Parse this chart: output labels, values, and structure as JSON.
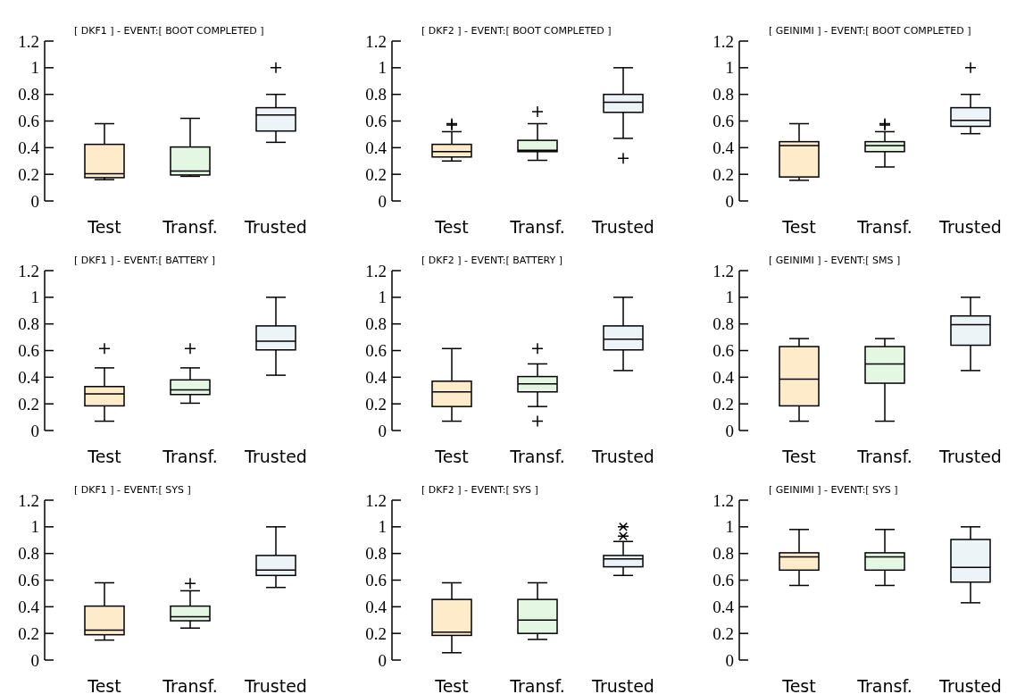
{
  "chart_data": [
    {
      "type": "box",
      "title": "[ DKF1 ] - EVENT:[ BOOT COMPLETED ]",
      "categories": [
        "Test",
        "Transf.",
        "Trusted"
      ],
      "colors": [
        "#fdebc9",
        "#e3f7e3",
        "#edf4f8"
      ],
      "ylim": [
        0,
        1.2
      ],
      "yticks": [
        0,
        0.2,
        0.4,
        0.6,
        0.8,
        1,
        1.2
      ],
      "marker": "cross",
      "boxes": [
        {
          "low": 0.16,
          "q1": 0.175,
          "median": 0.205,
          "q3": 0.425,
          "high": 0.58
        },
        {
          "low": 0.185,
          "q1": 0.195,
          "median": 0.225,
          "q3": 0.405,
          "high": 0.62
        },
        {
          "low": 0.44,
          "q1": 0.525,
          "median": 0.645,
          "q3": 0.7,
          "high": 0.8,
          "outliers": [
            1
          ]
        }
      ]
    },
    {
      "type": "box",
      "title": "[ DKF2 ] - EVENT:[ BOOT COMPLETED ]",
      "categories": [
        "Test",
        "Transf.",
        "Trusted"
      ],
      "colors": [
        "#fdebc9",
        "#e3f7e3",
        "#edf4f8"
      ],
      "ylim": [
        0,
        1.2
      ],
      "yticks": [
        0,
        0.2,
        0.4,
        0.6,
        0.8,
        1,
        1.2
      ],
      "marker": "cross",
      "boxes": [
        {
          "low": 0.3,
          "q1": 0.33,
          "median": 0.37,
          "q3": 0.425,
          "high": 0.52,
          "outliers": [
            0.57,
            0.58
          ]
        },
        {
          "low": 0.305,
          "q1": 0.37,
          "median": 0.38,
          "q3": 0.455,
          "high": 0.58,
          "outliers": [
            0.67
          ]
        },
        {
          "low": 0.47,
          "q1": 0.665,
          "median": 0.74,
          "q3": 0.8,
          "high": 1,
          "outliers": [
            0.32
          ]
        }
      ]
    },
    {
      "type": "box",
      "title": "[ GEINIMI ] - EVENT:[ BOOT COMPLETED ]",
      "categories": [
        "Test",
        "Transf.",
        "Trusted"
      ],
      "colors": [
        "#fdebc9",
        "#e3f7e3",
        "#edf4f8"
      ],
      "ylim": [
        0,
        1.2
      ],
      "yticks": [
        0,
        0.2,
        0.4,
        0.6,
        0.8,
        1,
        1.2
      ],
      "marker": "cross",
      "boxes": [
        {
          "low": 0.155,
          "q1": 0.18,
          "median": 0.415,
          "q3": 0.445,
          "high": 0.58
        },
        {
          "low": 0.255,
          "q1": 0.37,
          "median": 0.415,
          "q3": 0.445,
          "high": 0.52,
          "outliers": [
            0.57,
            0.58
          ]
        },
        {
          "low": 0.505,
          "q1": 0.56,
          "median": 0.605,
          "q3": 0.7,
          "high": 0.8,
          "outliers": [
            1
          ]
        }
      ]
    },
    {
      "type": "box",
      "title": "[ DKF1 ] - EVENT:[ BATTERY ]",
      "categories": [
        "Test",
        "Transf.",
        "Trusted"
      ],
      "colors": [
        "#fdebc9",
        "#e3f7e3",
        "#edf4f8"
      ],
      "ylim": [
        0,
        1.2
      ],
      "yticks": [
        0,
        0.2,
        0.4,
        0.6,
        0.8,
        1,
        1.2
      ],
      "marker": "cross",
      "boxes": [
        {
          "low": 0.07,
          "q1": 0.185,
          "median": 0.275,
          "q3": 0.33,
          "high": 0.47,
          "outliers": [
            0.615
          ]
        },
        {
          "low": 0.205,
          "q1": 0.27,
          "median": 0.305,
          "q3": 0.38,
          "high": 0.47,
          "outliers": [
            0.615
          ]
        },
        {
          "low": 0.415,
          "q1": 0.605,
          "median": 0.67,
          "q3": 0.785,
          "high": 1
        }
      ]
    },
    {
      "type": "box",
      "title": "[ DKF2 ] - EVENT:[ BATTERY ]",
      "categories": [
        "Test",
        "Transf.",
        "Trusted"
      ],
      "colors": [
        "#fdebc9",
        "#e3f7e3",
        "#edf4f8"
      ],
      "ylim": [
        0,
        1.2
      ],
      "yticks": [
        0,
        0.2,
        0.4,
        0.6,
        0.8,
        1,
        1.2
      ],
      "marker": "cross",
      "boxes": [
        {
          "low": 0.07,
          "q1": 0.18,
          "median": 0.29,
          "q3": 0.37,
          "high": 0.615
        },
        {
          "low": 0.18,
          "q1": 0.29,
          "median": 0.35,
          "q3": 0.405,
          "high": 0.5,
          "outliers": [
            0.615,
            0.07
          ]
        },
        {
          "low": 0.45,
          "q1": 0.605,
          "median": 0.685,
          "q3": 0.785,
          "high": 1
        }
      ]
    },
    {
      "type": "box",
      "title": "[ GEINIMI ] - EVENT:[ SMS ]",
      "categories": [
        "Test",
        "Transf.",
        "Trusted"
      ],
      "colors": [
        "#fdebc9",
        "#e3f7e3",
        "#edf4f8"
      ],
      "ylim": [
        0,
        1.2
      ],
      "yticks": [
        0,
        0.2,
        0.4,
        0.6,
        0.8,
        1,
        1.2
      ],
      "boxes": [
        {
          "low": 0.07,
          "q1": 0.185,
          "median": 0.385,
          "q3": 0.63,
          "high": 0.69
        },
        {
          "low": 0.07,
          "q1": 0.355,
          "median": 0.5,
          "q3": 0.63,
          "high": 0.69
        },
        {
          "low": 0.45,
          "q1": 0.64,
          "median": 0.795,
          "q3": 0.86,
          "high": 1
        }
      ]
    },
    {
      "type": "box",
      "title": "[ DKF1 ] - EVENT:[ SYS ]",
      "categories": [
        "Test",
        "Transf.",
        "Trusted"
      ],
      "colors": [
        "#fdebc9",
        "#e3f7e3",
        "#edf4f8"
      ],
      "ylim": [
        0,
        1.2
      ],
      "yticks": [
        0,
        0.2,
        0.4,
        0.6,
        0.8,
        1,
        1.2
      ],
      "marker": "cross",
      "boxes": [
        {
          "low": 0.15,
          "q1": 0.19,
          "median": 0.225,
          "q3": 0.405,
          "high": 0.58
        },
        {
          "low": 0.24,
          "q1": 0.295,
          "median": 0.325,
          "q3": 0.405,
          "high": 0.52,
          "outliers": [
            0.575
          ]
        },
        {
          "low": 0.545,
          "q1": 0.635,
          "median": 0.675,
          "q3": 0.785,
          "high": 1
        }
      ]
    },
    {
      "type": "box",
      "title": "[ DKF2 ] - EVENT:[ SYS ]",
      "categories": [
        "Test",
        "Transf.",
        "Trusted"
      ],
      "colors": [
        "#fdebc9",
        "#e3f7e3",
        "#edf4f8"
      ],
      "ylim": [
        0,
        1.2
      ],
      "yticks": [
        0,
        0.2,
        0.4,
        0.6,
        0.8,
        1,
        1.2
      ],
      "marker": "star",
      "boxes": [
        {
          "low": 0.055,
          "q1": 0.185,
          "median": 0.21,
          "q3": 0.455,
          "high": 0.58
        },
        {
          "low": 0.155,
          "q1": 0.2,
          "median": 0.3,
          "q3": 0.455,
          "high": 0.58
        },
        {
          "low": 0.635,
          "q1": 0.7,
          "median": 0.76,
          "q3": 0.785,
          "high": 0.89,
          "outliers": [
            0.93,
            1
          ]
        }
      ]
    },
    {
      "type": "box",
      "title": "[ GEINIMI ] - EVENT:[ SYS ]",
      "categories": [
        "Test",
        "Transf.",
        "Trusted"
      ],
      "colors": [
        "#fdebc9",
        "#e3f7e3",
        "#edf4f8"
      ],
      "ylim": [
        0,
        1.2
      ],
      "yticks": [
        0,
        0.2,
        0.4,
        0.6,
        0.8,
        1,
        1.2
      ],
      "boxes": [
        {
          "low": 0.56,
          "q1": 0.675,
          "median": 0.775,
          "q3": 0.805,
          "high": 0.98
        },
        {
          "low": 0.56,
          "q1": 0.675,
          "median": 0.775,
          "q3": 0.805,
          "high": 0.98
        },
        {
          "low": 0.43,
          "q1": 0.585,
          "median": 0.695,
          "q3": 0.905,
          "high": 1
        }
      ]
    }
  ]
}
